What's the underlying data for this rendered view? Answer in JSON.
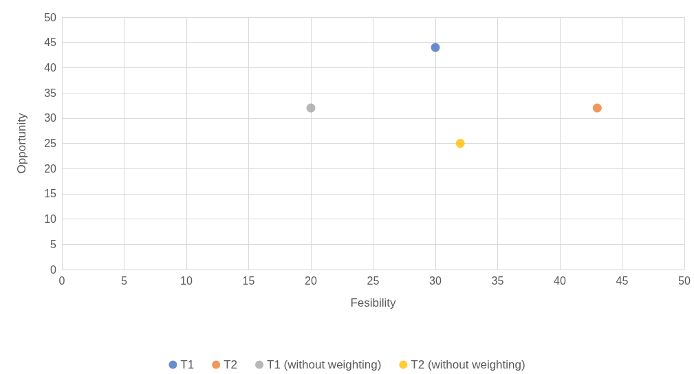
{
  "chart_data": {
    "type": "scatter",
    "xlabel": "Fesibility",
    "ylabel": "Opportunity",
    "xlim": [
      0,
      50
    ],
    "xticks": [
      0,
      5,
      10,
      15,
      20,
      25,
      30,
      35,
      40,
      45,
      50
    ],
    "ylim": [
      0,
      50
    ],
    "yticks": [
      0,
      5,
      10,
      15,
      20,
      25,
      30,
      35,
      40,
      45,
      50
    ],
    "grid": true,
    "legend": "bottom",
    "marker": "circle",
    "series": [
      {
        "name": "T1",
        "color": "#4472c4",
        "x": [
          30
        ],
        "values": [
          44
        ]
      },
      {
        "name": "T2",
        "color": "#ed7d31",
        "x": [
          43
        ],
        "values": [
          32
        ]
      },
      {
        "name": "T1 (without weighting)",
        "color": "#a5a5a5",
        "x": [
          20
        ],
        "values": [
          32
        ]
      },
      {
        "name": "T2 (without weighting)",
        "color": "#ffc000",
        "x": [
          32
        ],
        "values": [
          25
        ]
      }
    ]
  }
}
